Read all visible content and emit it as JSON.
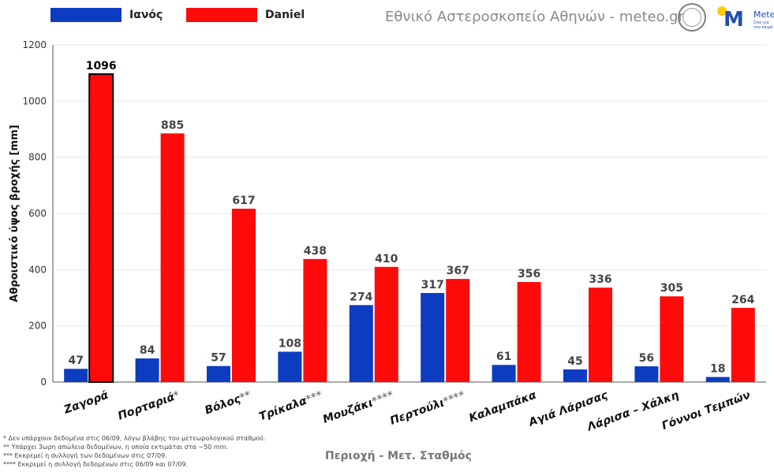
{
  "legend": {
    "series1_label": "Ιανός",
    "series2_label": "Daniel"
  },
  "colors": {
    "ianos": "#0c3cc0",
    "daniel": "#ff0a0a",
    "grid": "#e6e6e6"
  },
  "source": "Εθνικό Αστεροσκοπείο Αθηνών - meteo.gr",
  "meteo_logo": {
    "brand": "Meteo",
    "tagline": "Όλα για τον καιρό"
  },
  "footnotes": [
    "* Δεν υπάρχουν δεδομένα στις 06/09, λόγω βλάβης του μετεωρολογικού σταθμού.",
    "** Υπάρχει 3ωρη απώλεια δεδομένων, η οποία εκτιμάται στα ~50 mm.",
    "*** Εκκρεμεί η συλλογή των δεδομένων στις 07/09.",
    "**** Εκκρεμεί η συλλογή δεδομένων στις 06/09 και 07/09."
  ],
  "chart_data": {
    "type": "bar",
    "categories": [
      "Ζαγορά",
      "Πορταριά",
      "Βόλος",
      "Τρίκαλα",
      "Μουζάκι",
      "Περτούλι",
      "Καλαμπάκα",
      "Αγιά Λάρισας",
      "Λάρισα – Χάλκη",
      "Γόννοι Τεμπών"
    ],
    "category_marks": [
      "",
      "*",
      "**",
      "***",
      "****",
      "****",
      "",
      "",
      "",
      ""
    ],
    "series": [
      {
        "name": "Ιανός",
        "values": [
          47,
          84,
          57,
          108,
          274,
          317,
          61,
          45,
          56,
          18
        ]
      },
      {
        "name": "Daniel",
        "values": [
          1096,
          885,
          617,
          438,
          410,
          367,
          356,
          336,
          305,
          264
        ]
      }
    ],
    "xlabel": "Περιοχή - Μετ. Σταθμός",
    "ylabel": "Αθροιστικό ύψος βροχής [mm]",
    "ylim": [
      0,
      1200
    ],
    "yticks": [
      0,
      200,
      400,
      600,
      800,
      1000,
      1200
    ],
    "grid": true,
    "legend_position": "top-left",
    "highlight": "Daniel bar for Ζαγορά outlined"
  }
}
